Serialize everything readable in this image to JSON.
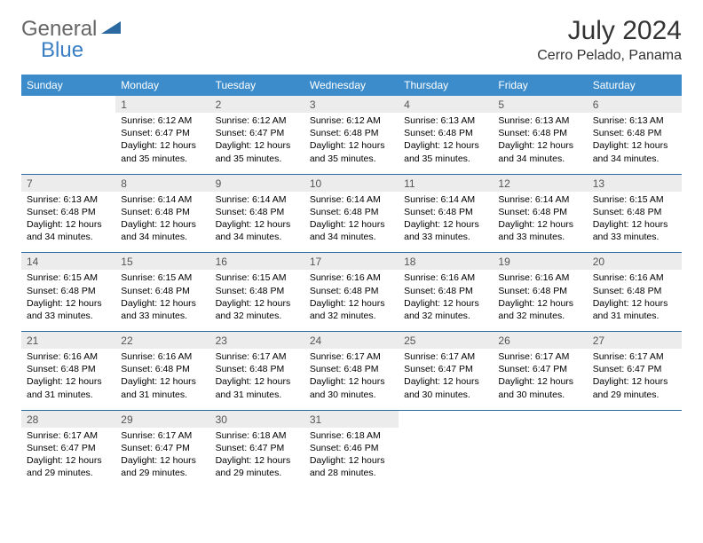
{
  "logo": {
    "general": "General",
    "blue": "Blue"
  },
  "header": {
    "title": "July 2024",
    "location": "Cerro Pelado, Panama"
  },
  "style": {
    "header_bg": "#3c8ccc",
    "header_text": "#ffffff",
    "daynum_bg": "#ececec",
    "rule_color": "#2a6aa0",
    "page_bg": "#ffffff",
    "title_fontsize": 30,
    "location_fontsize": 16,
    "dow_fontsize": 12,
    "cell_fontsize": 10.5
  },
  "dow": [
    "Sunday",
    "Monday",
    "Tuesday",
    "Wednesday",
    "Thursday",
    "Friday",
    "Saturday"
  ],
  "weeks": [
    {
      "nums": [
        "",
        "1",
        "2",
        "3",
        "4",
        "5",
        "6"
      ],
      "info": [
        "",
        "Sunrise: 6:12 AM\nSunset: 6:47 PM\nDaylight: 12 hours and 35 minutes.",
        "Sunrise: 6:12 AM\nSunset: 6:47 PM\nDaylight: 12 hours and 35 minutes.",
        "Sunrise: 6:12 AM\nSunset: 6:48 PM\nDaylight: 12 hours and 35 minutes.",
        "Sunrise: 6:13 AM\nSunset: 6:48 PM\nDaylight: 12 hours and 35 minutes.",
        "Sunrise: 6:13 AM\nSunset: 6:48 PM\nDaylight: 12 hours and 34 minutes.",
        "Sunrise: 6:13 AM\nSunset: 6:48 PM\nDaylight: 12 hours and 34 minutes."
      ]
    },
    {
      "nums": [
        "7",
        "8",
        "9",
        "10",
        "11",
        "12",
        "13"
      ],
      "info": [
        "Sunrise: 6:13 AM\nSunset: 6:48 PM\nDaylight: 12 hours and 34 minutes.",
        "Sunrise: 6:14 AM\nSunset: 6:48 PM\nDaylight: 12 hours and 34 minutes.",
        "Sunrise: 6:14 AM\nSunset: 6:48 PM\nDaylight: 12 hours and 34 minutes.",
        "Sunrise: 6:14 AM\nSunset: 6:48 PM\nDaylight: 12 hours and 34 minutes.",
        "Sunrise: 6:14 AM\nSunset: 6:48 PM\nDaylight: 12 hours and 33 minutes.",
        "Sunrise: 6:14 AM\nSunset: 6:48 PM\nDaylight: 12 hours and 33 minutes.",
        "Sunrise: 6:15 AM\nSunset: 6:48 PM\nDaylight: 12 hours and 33 minutes."
      ]
    },
    {
      "nums": [
        "14",
        "15",
        "16",
        "17",
        "18",
        "19",
        "20"
      ],
      "info": [
        "Sunrise: 6:15 AM\nSunset: 6:48 PM\nDaylight: 12 hours and 33 minutes.",
        "Sunrise: 6:15 AM\nSunset: 6:48 PM\nDaylight: 12 hours and 33 minutes.",
        "Sunrise: 6:15 AM\nSunset: 6:48 PM\nDaylight: 12 hours and 32 minutes.",
        "Sunrise: 6:16 AM\nSunset: 6:48 PM\nDaylight: 12 hours and 32 minutes.",
        "Sunrise: 6:16 AM\nSunset: 6:48 PM\nDaylight: 12 hours and 32 minutes.",
        "Sunrise: 6:16 AM\nSunset: 6:48 PM\nDaylight: 12 hours and 32 minutes.",
        "Sunrise: 6:16 AM\nSunset: 6:48 PM\nDaylight: 12 hours and 31 minutes."
      ]
    },
    {
      "nums": [
        "21",
        "22",
        "23",
        "24",
        "25",
        "26",
        "27"
      ],
      "info": [
        "Sunrise: 6:16 AM\nSunset: 6:48 PM\nDaylight: 12 hours and 31 minutes.",
        "Sunrise: 6:16 AM\nSunset: 6:48 PM\nDaylight: 12 hours and 31 minutes.",
        "Sunrise: 6:17 AM\nSunset: 6:48 PM\nDaylight: 12 hours and 31 minutes.",
        "Sunrise: 6:17 AM\nSunset: 6:48 PM\nDaylight: 12 hours and 30 minutes.",
        "Sunrise: 6:17 AM\nSunset: 6:47 PM\nDaylight: 12 hours and 30 minutes.",
        "Sunrise: 6:17 AM\nSunset: 6:47 PM\nDaylight: 12 hours and 30 minutes.",
        "Sunrise: 6:17 AM\nSunset: 6:47 PM\nDaylight: 12 hours and 29 minutes."
      ]
    },
    {
      "nums": [
        "28",
        "29",
        "30",
        "31",
        "",
        "",
        ""
      ],
      "info": [
        "Sunrise: 6:17 AM\nSunset: 6:47 PM\nDaylight: 12 hours and 29 minutes.",
        "Sunrise: 6:17 AM\nSunset: 6:47 PM\nDaylight: 12 hours and 29 minutes.",
        "Sunrise: 6:18 AM\nSunset: 6:47 PM\nDaylight: 12 hours and 29 minutes.",
        "Sunrise: 6:18 AM\nSunset: 6:46 PM\nDaylight: 12 hours and 28 minutes.",
        "",
        "",
        ""
      ]
    }
  ]
}
